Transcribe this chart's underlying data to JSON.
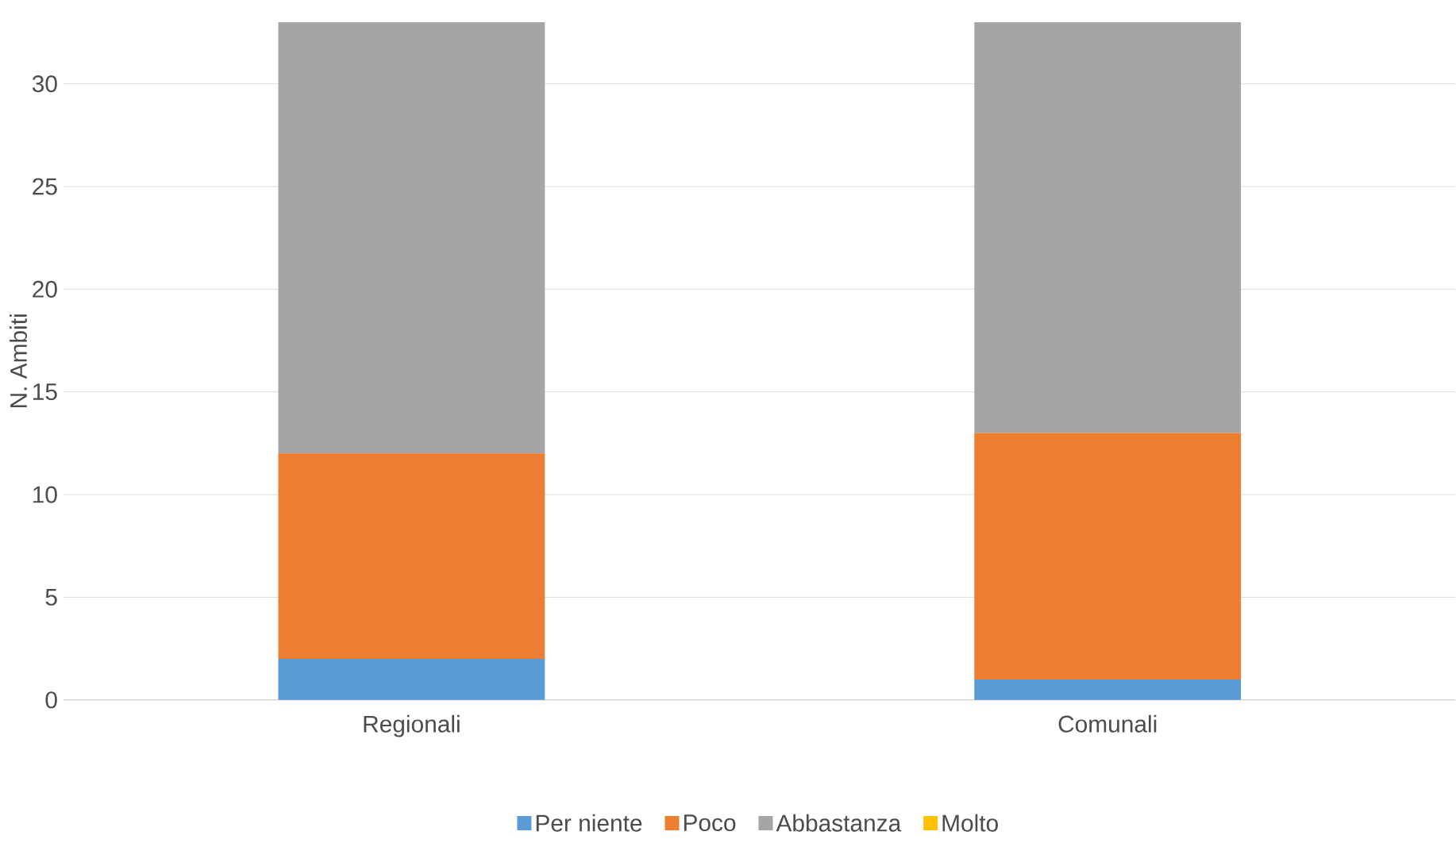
{
  "chart_data": {
    "type": "bar",
    "stacked": true,
    "ylabel": "N. Ambiti",
    "categories": [
      "Regionali",
      "Comunali"
    ],
    "series": [
      {
        "name": "Per niente",
        "color": "#5b9bd5",
        "values": [
          2,
          1
        ]
      },
      {
        "name": "Poco",
        "color": "#ed7d31",
        "values": [
          10,
          12
        ]
      },
      {
        "name": "Abbastanza",
        "color": "#a5a5a5",
        "values": [
          21,
          20
        ]
      },
      {
        "name": "Molto",
        "color": "#ffc000",
        "values": [
          0,
          0
        ]
      }
    ],
    "ylim": [
      0,
      33
    ],
    "yticks": [
      0,
      5,
      10,
      15,
      20,
      25,
      30
    ],
    "grid": "y",
    "legend": "bottom"
  }
}
